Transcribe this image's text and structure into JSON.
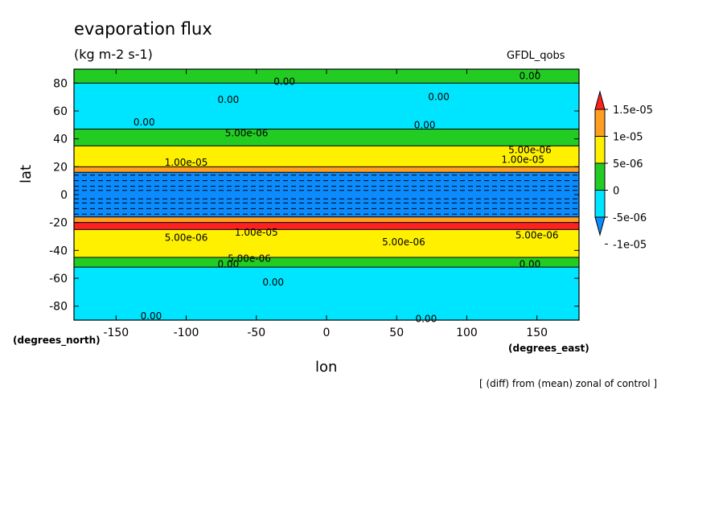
{
  "chart_data": {
    "type": "heatmap",
    "title": "evaporation flux",
    "units": "(kg m-2 s-1)",
    "model": "GFDL_qobs",
    "xlabel": "lon",
    "ylabel": "lat",
    "x_units": "(degrees_east)",
    "y_units": "(degrees_north)",
    "xlim": [
      -180,
      180
    ],
    "ylim": [
      -90,
      90
    ],
    "x_ticks": [
      "-150",
      "-100",
      "-50",
      "0",
      "50",
      "100",
      "150"
    ],
    "x_tick_values": [
      -150,
      -100,
      -50,
      0,
      50,
      100,
      150
    ],
    "y_ticks": [
      "-80",
      "-60",
      "-40",
      "-20",
      "0",
      "20",
      "40",
      "60",
      "80"
    ],
    "y_tick_values": [
      -80,
      -60,
      -40,
      -20,
      0,
      20,
      40,
      60,
      80
    ],
    "footnote": "[ (diff) from (mean) zonal of control ]",
    "colorbar": {
      "labels": [
        "1.5e-05",
        "1e-05",
        "5e-06",
        "0",
        "-5e-06",
        "-1e-05"
      ],
      "values": [
        1.5e-05,
        1e-05,
        5e-06,
        0,
        -5e-06,
        -1e-05
      ],
      "colors": [
        "#ff2020",
        "#ff9e20",
        "#fff000",
        "#22cc22",
        "#00e5ff",
        "#0a8cff"
      ]
    },
    "bands": [
      {
        "lat_from": 90,
        "lat_to": 80,
        "level": "0",
        "color": "#22cc22"
      },
      {
        "lat_from": 80,
        "lat_to": 47,
        "level": "-5e-06",
        "color": "#00e5ff"
      },
      {
        "lat_from": 47,
        "lat_to": 35,
        "level": "0",
        "color": "#22cc22"
      },
      {
        "lat_from": 35,
        "lat_to": 20,
        "level": "5e-06",
        "color": "#fff000"
      },
      {
        "lat_from": 20,
        "lat_to": 16,
        "level": "1e-05",
        "color": "#ff9e20"
      },
      {
        "lat_from": 16,
        "lat_to": -16,
        "level": "-1e-05",
        "color": "#0a8cff"
      },
      {
        "lat_from": -16,
        "lat_to": -20,
        "level": "1e-05",
        "color": "#ff9e20"
      },
      {
        "lat_from": -20,
        "lat_to": -25,
        "level": "1.5e-05",
        "color": "#ff2020"
      },
      {
        "lat_from": -25,
        "lat_to": -45,
        "level": "5e-06",
        "color": "#fff000"
      },
      {
        "lat_from": -45,
        "lat_to": -52,
        "level": "0",
        "color": "#22cc22"
      },
      {
        "lat_from": -52,
        "lat_to": -90,
        "level": "-5e-06",
        "color": "#00e5ff"
      }
    ],
    "contour_labels": [
      {
        "text": "0.00",
        "lon": -30,
        "lat": 81
      },
      {
        "text": "0.00",
        "lon": 145,
        "lat": 85
      },
      {
        "text": "0.00",
        "lon": -70,
        "lat": 68
      },
      {
        "text": "0.00",
        "lon": 80,
        "lat": 70
      },
      {
        "text": "0.00",
        "lon": -130,
        "lat": 52
      },
      {
        "text": "0.00",
        "lon": 70,
        "lat": 50
      },
      {
        "text": "5.00e-06",
        "lon": -57,
        "lat": 44
      },
      {
        "text": "5.00e-06",
        "lon": 145,
        "lat": 32
      },
      {
        "text": "1.00e-05",
        "lon": -100,
        "lat": 23
      },
      {
        "text": "1.00e-05",
        "lon": 140,
        "lat": 25
      },
      {
        "text": "5.00e-06",
        "lon": -100,
        "lat": -31
      },
      {
        "text": "1.00e-05",
        "lon": -50,
        "lat": -27
      },
      {
        "text": "5.00e-06",
        "lon": 55,
        "lat": -34
      },
      {
        "text": "5.00e-06",
        "lon": 150,
        "lat": -29
      },
      {
        "text": "5.00e-06",
        "lon": -55,
        "lat": -46
      },
      {
        "text": "0.00",
        "lon": -70,
        "lat": -50
      },
      {
        "text": "0.00",
        "lon": 145,
        "lat": -50
      },
      {
        "text": "0.00",
        "lon": -38,
        "lat": -63
      },
      {
        "text": "0.00",
        "lon": -125,
        "lat": -87
      },
      {
        "text": "0.00",
        "lon": 71,
        "lat": -89
      }
    ]
  }
}
